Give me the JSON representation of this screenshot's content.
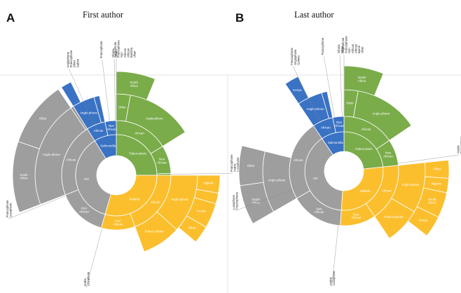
{
  "panels": [
    {
      "letter": "A",
      "title": "First author",
      "chart_data": {
        "type": "sunburst",
        "start_angle_deg": 0,
        "rings": [
          [
            {
              "label": "Tuberculosis",
              "value": 90,
              "color": "#7aac4a"
            },
            {
              "label": "Malaria",
              "value": 106,
              "color": "#fbbf2e"
            },
            {
              "label": "HIV",
              "value": 132,
              "color": "#9e9e9e"
            },
            {
              "label": "Salmonella",
              "value": 32,
              "color": "#3a72c4"
            }
          ],
          [
            {
              "label": "African",
              "value": 58,
              "color": "#7aac4a"
            },
            {
              "label": "Non African",
              "value": 30,
              "color": "#7aac4a"
            },
            {
              "label": "",
              "value": 2,
              "color": "#7aac4a"
            },
            {
              "label": "African",
              "value": 70,
              "color": "#fbbf2e"
            },
            {
              "label": "Non African",
              "value": 36,
              "color": "#fbbf2e"
            },
            {
              "label": "Non African",
              "value": 53,
              "color": "#9e9e9e"
            },
            {
              "label": "African",
              "value": 79,
              "color": "#9e9e9e"
            },
            {
              "label": "African",
              "value": 20,
              "color": "#3a72c4"
            },
            {
              "label": "Non African",
              "value": 12,
              "color": "#3a72c4"
            }
          ],
          [
            {
              "label": "Other",
              "value": 10,
              "color": "#7aac4a"
            },
            {
              "label": "Anglo-phone",
              "value": 48,
              "color": "#7aac4a"
            },
            {
              "label": "",
              "value": 32,
              "color": null
            },
            {
              "label": "Anglo-phone",
              "value": 42,
              "color": "#fbbf2e"
            },
            {
              "label": "Franco-phone",
              "value": 28,
              "color": "#fbbf2e"
            },
            {
              "label": "",
              "value": 36,
              "color": null
            },
            {
              "label": "",
              "value": 53,
              "color": null
            },
            {
              "label": "Anglo-phone",
              "value": 77,
              "color": "#9e9e9e"
            },
            {
              "label": "",
              "value": 2,
              "color": "#9e9e9e"
            },
            {
              "label": "Anglo-phone",
              "value": 16,
              "color": "#3a72c4"
            },
            {
              "label": "",
              "value": 4,
              "color": "#3a72c4"
            },
            {
              "label": "",
              "value": 12,
              "color": null
            }
          ],
          [
            {
              "label": "South Africa",
              "value": 22,
              "color": "#7aac4a"
            },
            {
              "label": "",
              "value": 68,
              "color": null
            },
            {
              "label": "Nigeria",
              "value": 10,
              "color": "#fbbf2e"
            },
            {
              "label": "Nigeria",
              "value": 6,
              "color": "#fbbf2e"
            },
            {
              "label": "Kenya",
              "value": 14,
              "color": "#fbbf2e"
            },
            {
              "label": "Other",
              "value": 10,
              "color": "#fbbf2e"
            },
            {
              "label": "",
              "value": 66,
              "color": null
            },
            {
              "label": "",
              "value": 53,
              "color": null
            },
            {
              "label": "South Africa",
              "value": 40,
              "color": "#9e9e9e"
            },
            {
              "label": "Other",
              "value": 37,
              "color": "#9e9e9e"
            },
            {
              "label": "",
              "value": 2,
              "color": null
            },
            {
              "label": "Nigeria",
              "value": 6,
              "color": "#3a72c4"
            },
            {
              "label": "",
              "value": 26,
              "color": null
            }
          ]
        ],
        "callouts": [
          {
            "label": "Francophone",
            "value_pos": 353
          },
          {
            "label": "Francophone Arabic Lusophone",
            "value_pos": 89
          },
          {
            "label": "Arabic Lusophone",
            "value_pos": 195
          },
          {
            "label": "Francophone Lusophone",
            "value_pos": 248
          },
          {
            "label": "Anglophone Francophone Other Gabon",
            "value_pos": 336
          },
          {
            "label": "Ghana Other",
            "value_pos": 359
          },
          {
            "label": "Anglophone Francophone Non African African Burkina Ulser",
            "value_pos": 0
          }
        ]
      }
    },
    {
      "letter": "B",
      "title": "Last author",
      "chart_data": {
        "type": "sunburst",
        "start_angle_deg": 0,
        "rings": [
          [
            {
              "label": "Tuberculosis",
              "value": 84,
              "color": "#7aac4a"
            },
            {
              "label": "Malaria",
              "value": 100,
              "color": "#fbbf2e"
            },
            {
              "label": "HIV",
              "value": 142,
              "color": "#9e9e9e"
            },
            {
              "label": "Salmonella",
              "value": 34,
              "color": "#3a72c4"
            }
          ],
          [
            {
              "label": "African",
              "value": 56,
              "color": "#7aac4a"
            },
            {
              "label": "Non African",
              "value": 28,
              "color": "#7aac4a"
            },
            {
              "label": "African",
              "value": 62,
              "color": "#fbbf2e"
            },
            {
              "label": "Non African",
              "value": 38,
              "color": "#fbbf2e"
            },
            {
              "label": "Non African",
              "value": 56,
              "color": "#9e9e9e"
            },
            {
              "label": "African",
              "value": 86,
              "color": "#9e9e9e"
            },
            {
              "label": "African",
              "value": 22,
              "color": "#3a72c4"
            },
            {
              "label": "Non African",
              "value": 12,
              "color": "#3a72c4"
            }
          ],
          [
            {
              "label": "Other",
              "value": 10,
              "color": "#7aac4a"
            },
            {
              "label": "Anglo-phone",
              "value": 46,
              "color": "#7aac4a"
            },
            {
              "label": "",
              "value": 28,
              "color": null
            },
            {
              "label": "Anglo-phone",
              "value": 36,
              "color": "#fbbf2e"
            },
            {
              "label": "Franco-phone",
              "value": 26,
              "color": "#fbbf2e"
            },
            {
              "label": "",
              "value": 38,
              "color": null
            },
            {
              "label": "",
              "value": 56,
              "color": null
            },
            {
              "label": "Anglo-phone",
              "value": 44,
              "color": "#9e9e9e"
            },
            {
              "label": "",
              "value": 42,
              "color": null
            },
            {
              "label": "Anglo-phone",
              "value": 18,
              "color": "#3a72c4"
            },
            {
              "label": "",
              "value": 4,
              "color": "#3a72c4"
            },
            {
              "label": "",
              "value": 12,
              "color": null
            }
          ],
          [
            {
              "label": "South Africa",
              "value": 22,
              "color": "#7aac4a"
            },
            {
              "label": "",
              "value": 62,
              "color": null
            },
            {
              "label": "Other",
              "value": 10,
              "color": "#fbbf2e"
            },
            {
              "label": "Nigeria",
              "value": 8,
              "color": "#fbbf2e"
            },
            {
              "label": "South Africa",
              "value": 14,
              "color": "#fbbf2e"
            },
            {
              "label": "Kenya",
              "value": 12,
              "color": "#fbbf2e"
            },
            {
              "label": "",
              "value": 56,
              "color": null
            },
            {
              "label": "",
              "value": 56,
              "color": null
            },
            {
              "label": "South Africa",
              "value": 22,
              "color": "#9e9e9e"
            },
            {
              "label": "Other",
              "value": 22,
              "color": "#9e9e9e"
            },
            {
              "label": "",
              "value": 42,
              "color": null
            },
            {
              "label": "Kenya",
              "value": 8,
              "color": "#3a72c4"
            },
            {
              "label": "",
              "value": 26,
              "color": null
            }
          ]
        ],
        "callouts": [
          {
            "label": "Francophone",
            "value_pos": 350
          },
          {
            "label": "Arabic Francophone",
            "value_pos": 82
          },
          {
            "label": "Arabic Lusophone",
            "value_pos": 186
          },
          {
            "label": "Lusophone Francophone",
            "value_pos": 250
          },
          {
            "label": "Francophone Anglophone Guinea",
            "value_pos": 334
          },
          {
            "label": "Ghana Other",
            "value_pos": 358
          },
          {
            "label": "Anglophone Francophone Non African African Buruli Ulcer",
            "value_pos": 0
          }
        ]
      }
    }
  ]
}
